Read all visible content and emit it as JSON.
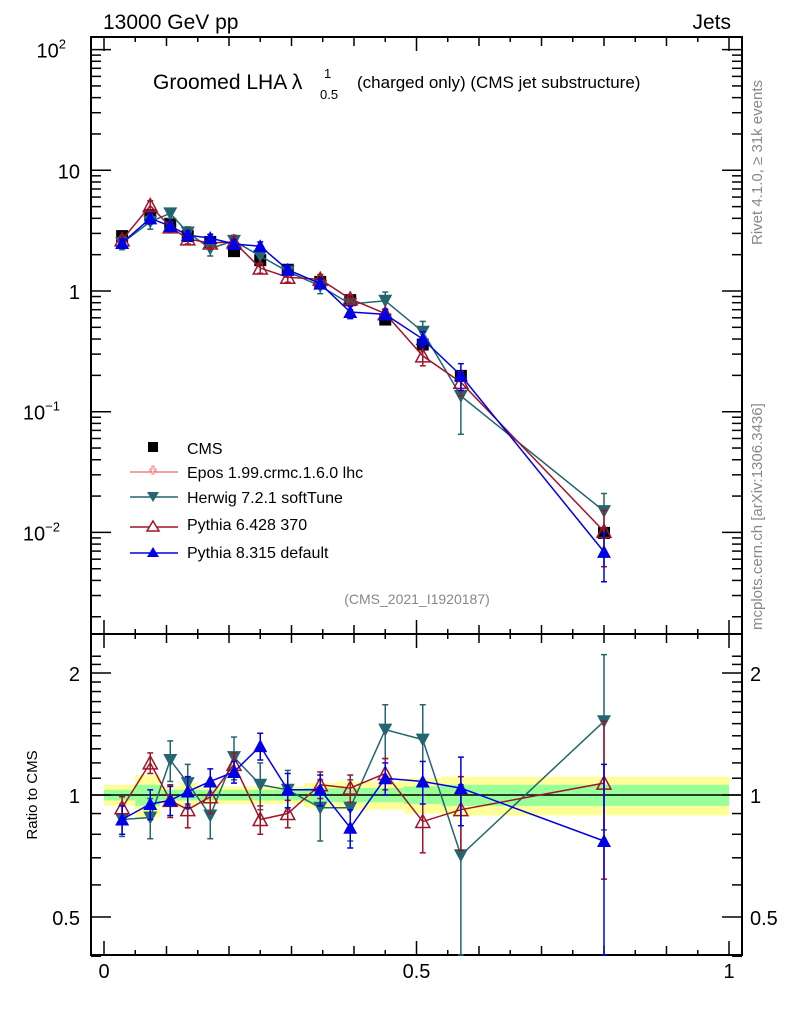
{
  "header": {
    "left": "13000 GeV pp",
    "right": "Jets"
  },
  "side_labels": {
    "rivet": "Rivet 4.1.0, ≥ 31k events",
    "mcplots": "mcplots.cern.ch [arXiv:1306.3436]"
  },
  "chart_data": [
    {
      "type": "scatter",
      "panel": "main",
      "title": "Groomed LHA λ",
      "title_sup": "1",
      "title_sub": "0.5",
      "title_suffix": "(charged only) (CMS jet substructure)",
      "analysis_label": "(CMS_2021_I1920187)",
      "xlabel": "",
      "ylabel": "",
      "yscale": "log",
      "xlim": [
        0,
        1
      ],
      "ylim": [
        0.0017,
        130
      ],
      "y_ticks": [
        {
          "value": 100,
          "label": "10",
          "exp": "2"
        },
        {
          "value": 10,
          "label": "10",
          "exp": ""
        },
        {
          "value": 1,
          "label": "1",
          "exp": ""
        },
        {
          "value": 0.1,
          "label": "10",
          "exp": "−1"
        },
        {
          "value": 0.01,
          "label": "10",
          "exp": "−2"
        }
      ],
      "legend_position": "lower-left",
      "x": [
        0.029,
        0.074,
        0.106,
        0.134,
        0.17,
        0.208,
        0.25,
        0.294,
        0.346,
        0.394,
        0.45,
        0.51,
        0.571,
        0.8
      ],
      "series": [
        {
          "name": "CMS",
          "color": "#000000",
          "marker": "square",
          "values": [
            2.85,
            4.25,
            3.6,
            2.85,
            2.55,
            2.14,
            1.8,
            1.5,
            1.19,
            0.84,
            0.58,
            0.36,
            0.198,
            0.0099
          ]
        },
        {
          "name": "Epos 1.99.crmc.1.6.0 lhc",
          "color": "#f08080",
          "marker": "open-cross",
          "values": []
        },
        {
          "name": "Herwig 7.2.1 softTune",
          "color": "#236570",
          "marker": "triangle-down",
          "values": [
            2.5,
            3.75,
            4.4,
            3.05,
            2.25,
            2.6,
            1.95,
            1.45,
            1.1,
            0.78,
            0.83,
            0.46,
            0.135,
            0.015
          ],
          "errors": [
            0.3,
            0.5,
            0.4,
            0.35,
            0.3,
            0.3,
            0.25,
            0.15,
            0.15,
            0.08,
            0.15,
            0.1,
            0.07,
            0.006
          ]
        },
        {
          "name": "Pythia 6.428 370",
          "color": "#a0142a",
          "marker": "open-triangle-up",
          "values": [
            2.65,
            5.1,
            3.4,
            2.7,
            2.5,
            2.55,
            1.55,
            1.3,
            1.25,
            0.86,
            0.65,
            0.29,
            0.175,
            0.0102
          ],
          "errors": [
            0.2,
            0.5,
            0.3,
            0.25,
            0.2,
            0.25,
            0.15,
            0.12,
            0.12,
            0.07,
            0.06,
            0.05,
            0.04,
            0.005
          ]
        },
        {
          "name": "Pythia 8.315 default",
          "color": "#0000e6",
          "marker": "triangle-up",
          "values": [
            2.5,
            4.0,
            3.45,
            2.9,
            2.75,
            2.45,
            2.35,
            1.5,
            1.15,
            0.67,
            0.64,
            0.4,
            0.2,
            0.0069
          ],
          "errors": [
            0.2,
            0.4,
            0.3,
            0.25,
            0.2,
            0.2,
            0.2,
            0.12,
            0.1,
            0.08,
            0.06,
            0.06,
            0.05,
            0.003
          ]
        }
      ]
    },
    {
      "type": "scatter",
      "panel": "ratio",
      "ylabel": "Ratio to CMS",
      "yscale": "log",
      "xlim": [
        0,
        1
      ],
      "ylim": [
        0.34,
        2.3
      ],
      "y_ticks": [
        {
          "value": 2,
          "label": "2"
        },
        {
          "value": 1,
          "label": "1"
        },
        {
          "value": 0.5,
          "label": "0.5"
        }
      ],
      "x_ticks": [
        {
          "value": 0,
          "label": "0"
        },
        {
          "value": 0.5,
          "label": "0.5"
        },
        {
          "value": 1,
          "label": "1"
        }
      ],
      "reference_line": 1,
      "bands": {
        "edges": [
          0,
          0.05,
          0.09,
          0.12,
          0.15,
          0.19,
          0.23,
          0.27,
          0.32,
          0.37,
          0.42,
          0.48,
          0.54,
          0.6,
          1.0
        ],
        "stat_color": "#99ff99",
        "total_color": "#ffff99",
        "stat": [
          0.03,
          0.06,
          0.03,
          0.03,
          0.03,
          0.03,
          0.03,
          0.03,
          0.04,
          0.04,
          0.04,
          0.05,
          0.06,
          0.06
        ],
        "total": [
          0.06,
          0.12,
          0.05,
          0.07,
          0.05,
          0.05,
          0.05,
          0.05,
          0.07,
          0.08,
          0.08,
          0.1,
          0.11,
          0.11
        ]
      },
      "x": [
        0.029,
        0.074,
        0.106,
        0.134,
        0.17,
        0.208,
        0.25,
        0.294,
        0.346,
        0.394,
        0.45,
        0.51,
        0.571,
        0.8
      ],
      "series": [
        {
          "name": "Herwig 7.2.1 softTune",
          "color": "#236570",
          "marker": "triangle-down",
          "values": [
            0.87,
            0.88,
            1.22,
            1.07,
            0.89,
            1.24,
            1.06,
            1.03,
            0.93,
            0.93,
            1.45,
            1.37,
            0.71,
            1.52
          ],
          "errors": [
            0.08,
            0.1,
            0.14,
            0.12,
            0.11,
            0.15,
            0.14,
            0.12,
            0.16,
            0.16,
            0.22,
            0.3,
            0.35,
            0.7
          ]
        },
        {
          "name": "Pythia 6.428 370",
          "color": "#a0142a",
          "marker": "open-triangle-up",
          "values": [
            0.93,
            1.2,
            0.97,
            0.92,
            0.99,
            1.19,
            0.87,
            0.9,
            1.06,
            1.04,
            1.13,
            0.86,
            0.92,
            1.07
          ],
          "errors": [
            0.06,
            0.07,
            0.09,
            0.09,
            0.09,
            0.08,
            0.07,
            0.07,
            0.08,
            0.08,
            0.1,
            0.14,
            0.19,
            0.45
          ]
        },
        {
          "name": "Pythia 8.315 default",
          "color": "#0000e6",
          "marker": "triangle-up",
          "values": [
            0.87,
            0.95,
            0.97,
            1.02,
            1.08,
            1.14,
            1.32,
            1.03,
            1.03,
            0.83,
            1.1,
            1.08,
            1.04,
            0.77
          ],
          "errors": [
            0.07,
            0.08,
            0.08,
            0.09,
            0.08,
            0.07,
            0.1,
            0.1,
            0.09,
            0.09,
            0.1,
            0.13,
            0.2,
            0.42
          ]
        }
      ]
    }
  ]
}
